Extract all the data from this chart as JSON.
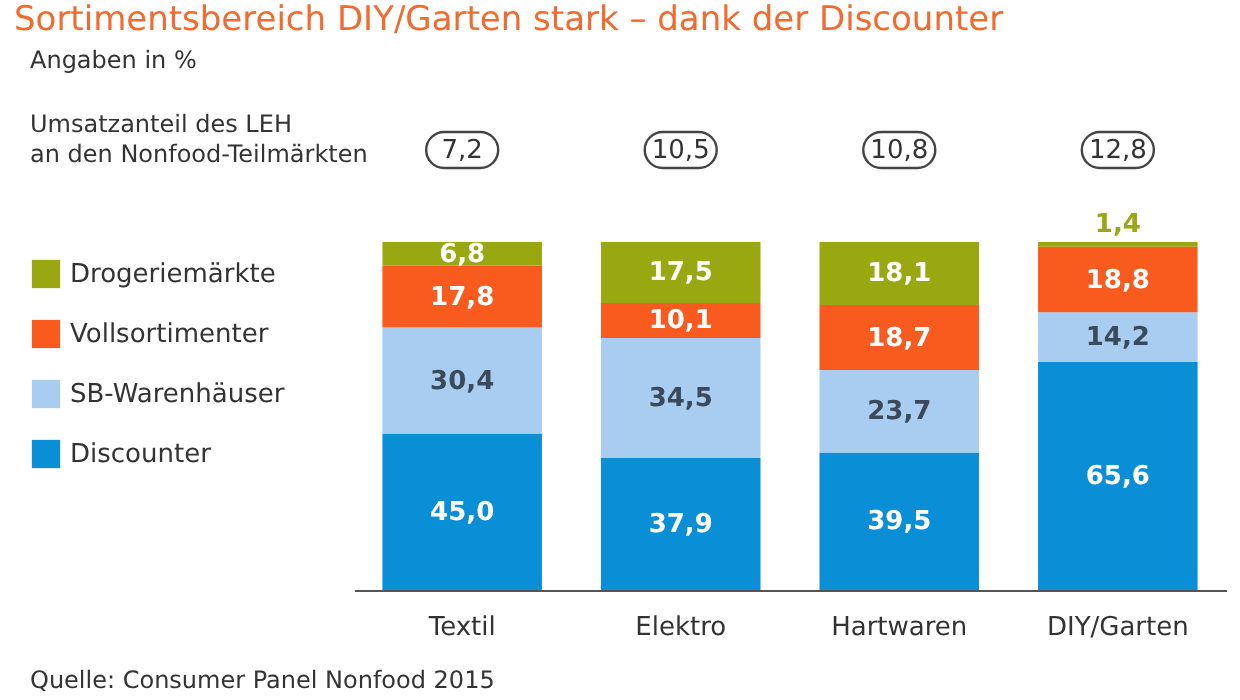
{
  "chart_data": {
    "type": "bar",
    "title": "Sortimentsbereich DIY/Garten stark – dank der Discounter",
    "subtitle": "Angaben in %",
    "categories": [
      "Textil",
      "Elektro",
      "Hartwaren",
      "DIY/Garten"
    ],
    "stacked": true,
    "legend": "left",
    "grid": false,
    "series": [
      {
        "name": "Discounter",
        "color": "#0a8fd6",
        "values": [
          45.0,
          37.9,
          39.5,
          65.6
        ],
        "value_labels": [
          "45,0",
          "37,9",
          "39,5",
          "65,6"
        ]
      },
      {
        "name": "SB-Warenhäuser",
        "color": "#a9cdf0",
        "values": [
          30.4,
          34.5,
          23.7,
          14.2
        ],
        "value_labels": [
          "30,4",
          "34,5",
          "23,7",
          "14,2"
        ]
      },
      {
        "name": "Vollsortimenter",
        "color": "#f95a1e",
        "values": [
          17.8,
          10.1,
          18.7,
          18.8
        ],
        "value_labels": [
          "17,8",
          "10,1",
          "18,7",
          "18,8"
        ]
      },
      {
        "name": "Drogeriemärkte",
        "color": "#99a810",
        "values": [
          6.8,
          17.5,
          18.1,
          1.4
        ],
        "value_labels": [
          "6,8",
          "17,5",
          "18,1",
          "1,4"
        ]
      }
    ],
    "annotations": [
      "Umsatzanteil des LEH\nan den Nonfood-Teilmärkten",
      {
        "text": "7,2",
        "x": "Textil",
        "y": 100
      },
      {
        "text": "10,5",
        "x": "Elektro",
        "y": 100
      },
      {
        "text": "10,8",
        "x": "Hartwaren",
        "y": 100
      },
      {
        "text": "12,8",
        "x": "DIY/Garten",
        "y": 100
      },
      "Quelle: Consumer Panel Nonfood 2015"
    ]
  }
}
